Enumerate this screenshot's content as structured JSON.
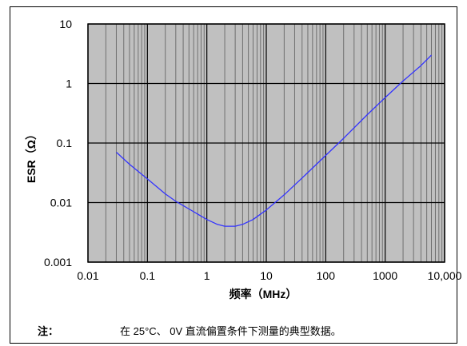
{
  "chart_data": {
    "type": "line",
    "xlabel": "频率（MHz）",
    "ylabel": "ESR（Ω）",
    "x_scale": "log",
    "y_scale": "log",
    "xlim": [
      0.01,
      10000
    ],
    "ylim": [
      0.001,
      10
    ],
    "x_ticks": [
      "0.01",
      "0.1",
      "1",
      "10",
      "100",
      "1000",
      "10,000"
    ],
    "y_ticks": [
      "0.001",
      "0.01",
      "0.1",
      "1",
      "10"
    ],
    "grid": true,
    "plot_background": "#c0c0c0",
    "series": [
      {
        "color": "#3333ff",
        "points": [
          [
            0.03,
            0.07
          ],
          [
            0.05,
            0.044
          ],
          [
            0.1,
            0.025
          ],
          [
            0.2,
            0.014
          ],
          [
            0.3,
            0.0105
          ],
          [
            0.5,
            0.0078
          ],
          [
            0.7,
            0.0064
          ],
          [
            1,
            0.0052
          ],
          [
            1.5,
            0.0043
          ],
          [
            2,
            0.004
          ],
          [
            3,
            0.004
          ],
          [
            4,
            0.0043
          ],
          [
            6,
            0.0052
          ],
          [
            10,
            0.0075
          ],
          [
            20,
            0.0135
          ],
          [
            50,
            0.032
          ],
          [
            100,
            0.062
          ],
          [
            200,
            0.12
          ],
          [
            500,
            0.3
          ],
          [
            1000,
            0.58
          ],
          [
            2000,
            1.1
          ],
          [
            4000,
            2.0
          ],
          [
            6000,
            3.0
          ]
        ]
      }
    ]
  },
  "note": {
    "label": "注：",
    "text": "在 25°C、 0V 直流偏置条件下测量的典型数据。"
  }
}
